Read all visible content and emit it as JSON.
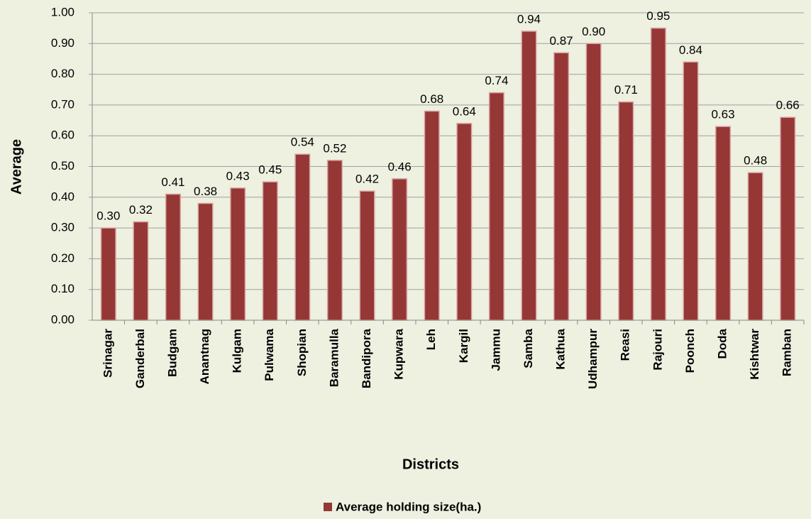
{
  "chart_data": {
    "type": "bar",
    "x_label": "Districts",
    "y_label": "Average",
    "categories": [
      "Srinagar",
      "Ganderbal",
      "Budgam",
      "Anantnag",
      "Kulgam",
      "Pulwama",
      "Shopian",
      "Baramulla",
      "Bandipora",
      "Kupwara",
      "Leh",
      "Kargil",
      "Jammu",
      "Samba",
      "Kathua",
      "Udhampur",
      "Reasi",
      "Rajouri",
      "Poonch",
      "Doda",
      "Kishtwar",
      "Ramban"
    ],
    "series": [
      {
        "name": "Average holding size(ha.)",
        "color": "#953735",
        "values": [
          0.3,
          0.32,
          0.41,
          0.38,
          0.43,
          0.45,
          0.54,
          0.52,
          0.42,
          0.46,
          0.68,
          0.64,
          0.74,
          0.94,
          0.87,
          0.9,
          0.71,
          0.95,
          0.84,
          0.63,
          0.48,
          0.66
        ],
        "value_labels": [
          "0.30",
          "0.32",
          "0.41",
          "0.38",
          "0.43",
          "0.45",
          "0.54",
          "0.52",
          "0.42",
          "0.46",
          "0.68",
          "0.64",
          "0.74",
          "0.94",
          "0.87",
          "0.90",
          "0.71",
          "0.95",
          "0.84",
          "0.63",
          "0.48",
          "0.66"
        ]
      }
    ],
    "ylim": [
      0,
      1
    ],
    "yticks": [
      {
        "value": 0,
        "label": "0.00"
      },
      {
        "value": 0.1,
        "label": "0.10"
      },
      {
        "value": 0.2,
        "label": "0.20"
      },
      {
        "value": 0.3,
        "label": "0.30"
      },
      {
        "value": 0.4,
        "label": "0.40"
      },
      {
        "value": 0.5,
        "label": "0.50"
      },
      {
        "value": 0.6,
        "label": "0.60"
      },
      {
        "value": 0.7,
        "label": "0.70"
      },
      {
        "value": 0.8,
        "label": "0.80"
      },
      {
        "value": 0.9,
        "label": "0.90"
      },
      {
        "value": 1,
        "label": "1.00"
      }
    ],
    "grid": true,
    "legend": "bottom"
  }
}
